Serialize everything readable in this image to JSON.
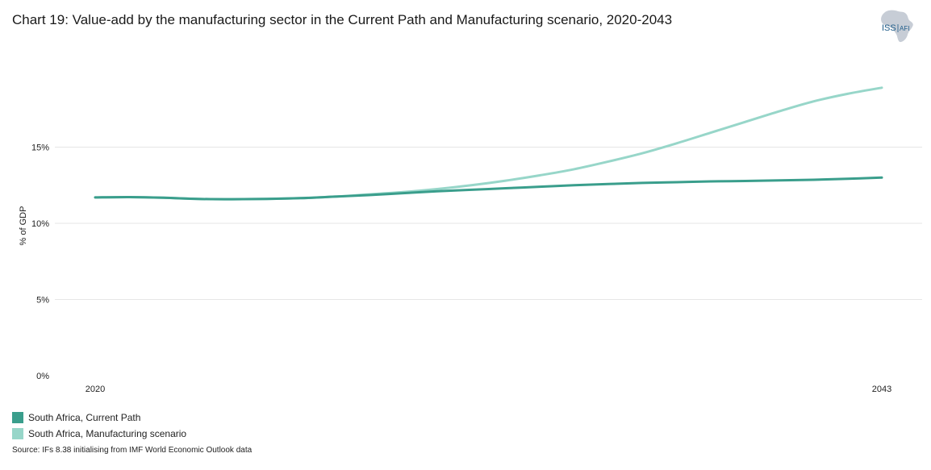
{
  "title": "Chart 19: Value-add by the manufacturing sector in the Current Path and Manufacturing scenario, 2020-2043",
  "logo": {
    "text_main": "ISS",
    "text_sub": "AFI",
    "map_color": "#c7cdd6",
    "text_color": "#1f5d8a"
  },
  "source": "Source: IFs 8.38 initialising from IMF World Economic Outlook data",
  "chart_data": {
    "type": "line",
    "title": "Chart 19: Value-add by the manufacturing sector in the Current Path and Manufacturing scenario, 2020-2043",
    "xlabel": "",
    "ylabel": "% of GDP",
    "x": [
      2020,
      2021,
      2022,
      2023,
      2024,
      2025,
      2026,
      2027,
      2028,
      2029,
      2030,
      2031,
      2032,
      2033,
      2034,
      2035,
      2036,
      2037,
      2038,
      2039,
      2040,
      2041,
      2042,
      2043
    ],
    "x_tick_labels": [
      "2020",
      "2043"
    ],
    "x_ticks": [
      2020,
      2043
    ],
    "y_ticks": [
      0,
      5,
      10,
      15
    ],
    "y_tick_labels": [
      "0%",
      "5%",
      "10%",
      "15%"
    ],
    "ylim": [
      0,
      20
    ],
    "grid": true,
    "legend_position": "bottom-left",
    "series": [
      {
        "name": "South Africa, Current Path",
        "color": "#3a9e8c",
        "values": [
          11.7,
          11.72,
          11.68,
          11.6,
          11.58,
          11.6,
          11.65,
          11.75,
          11.85,
          11.98,
          12.1,
          12.2,
          12.3,
          12.4,
          12.5,
          12.58,
          12.65,
          12.7,
          12.75,
          12.78,
          12.82,
          12.86,
          12.92,
          13.0
        ]
      },
      {
        "name": "South Africa, Manufacturing scenario",
        "color": "#97d6c9",
        "values": [
          11.7,
          11.72,
          11.68,
          11.6,
          11.58,
          11.6,
          11.65,
          11.75,
          11.9,
          12.05,
          12.25,
          12.5,
          12.8,
          13.15,
          13.55,
          14.05,
          14.6,
          15.25,
          15.95,
          16.65,
          17.35,
          18.0,
          18.5,
          18.9
        ]
      }
    ]
  }
}
